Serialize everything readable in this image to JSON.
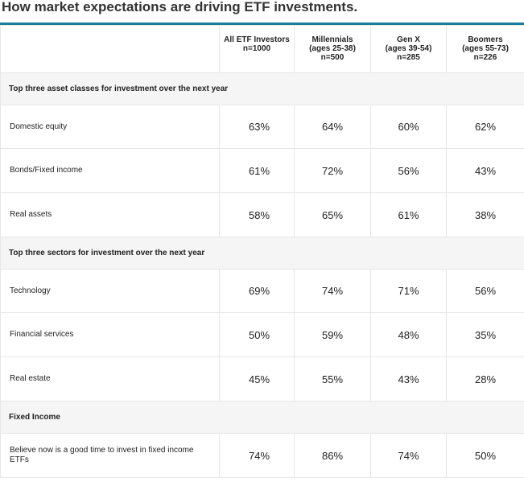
{
  "title": "How market expectations are driving ETF investments.",
  "columns": [
    {
      "lines": [
        "All ETF Investors",
        "n=1000"
      ]
    },
    {
      "lines": [
        "Millennials",
        "(ages 25-38)",
        "n=500"
      ]
    },
    {
      "lines": [
        "Gen X",
        "(ages 39-54)",
        "n=285"
      ]
    },
    {
      "lines": [
        "Boomers",
        "(ages 55-73)",
        "n=226"
      ]
    }
  ],
  "sections": [
    {
      "heading": "Top three asset classes for investment over the next year",
      "rows": [
        {
          "label": "Domestic equity",
          "values": [
            "63%",
            "64%",
            "60%",
            "62%"
          ]
        },
        {
          "label": "Bonds/Fixed income",
          "values": [
            "61%",
            "72%",
            "56%",
            "43%"
          ]
        },
        {
          "label": "Real assets",
          "values": [
            "58%",
            "65%",
            "61%",
            "38%"
          ]
        }
      ]
    },
    {
      "heading": "Top three sectors for investment over the next year",
      "rows": [
        {
          "label": "Technology",
          "values": [
            "69%",
            "74%",
            "71%",
            "56%"
          ]
        },
        {
          "label": "Financial services",
          "values": [
            "50%",
            "59%",
            "48%",
            "35%"
          ]
        },
        {
          "label": "Real estate",
          "values": [
            "45%",
            "55%",
            "43%",
            "28%"
          ]
        }
      ]
    },
    {
      "heading": "Fixed Income",
      "rows": [
        {
          "label": "Believe now is a good time to invest in fixed income ETFs",
          "values": [
            "74%",
            "86%",
            "74%",
            "50%"
          ]
        }
      ]
    }
  ],
  "colors": {
    "accent_rule": "#1a7d9c",
    "section_bg": "#f5f5f5",
    "grid_line": "#e6e6e6"
  }
}
